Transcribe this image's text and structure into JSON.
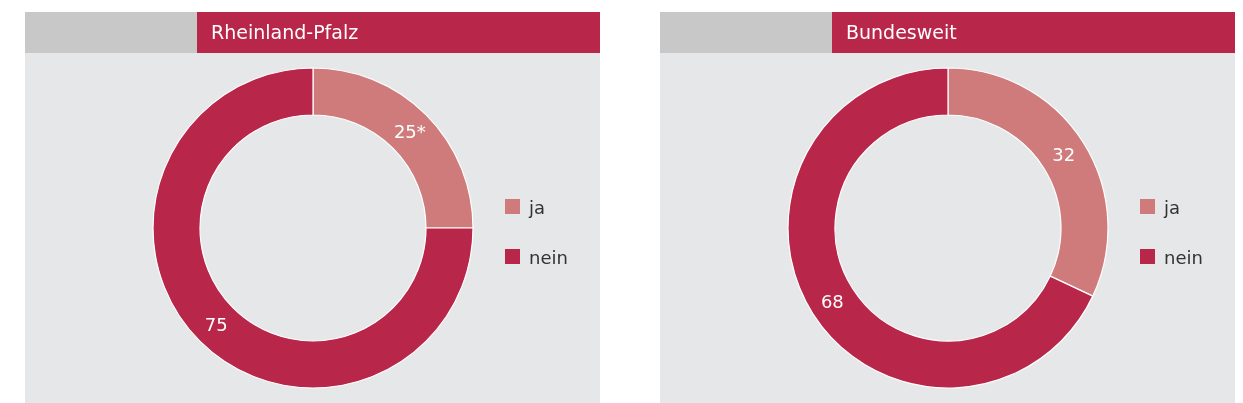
{
  "chart_data": [
    {
      "type": "donut",
      "title": "Rheinland-Pfalz",
      "categories": [
        "ja",
        "nein"
      ],
      "values": [
        25,
        75
      ],
      "colors": [
        "#cf7b7b",
        "#b8264a"
      ],
      "value_labels": [
        "25*",
        "75"
      ],
      "legend": "right"
    },
    {
      "type": "donut",
      "title": "Bundesweit",
      "categories": [
        "ja",
        "nein"
      ],
      "values": [
        32,
        68
      ],
      "colors": [
        "#cf7b7b",
        "#b8264a"
      ],
      "value_labels": [
        "32",
        "68"
      ],
      "legend": "right"
    }
  ]
}
